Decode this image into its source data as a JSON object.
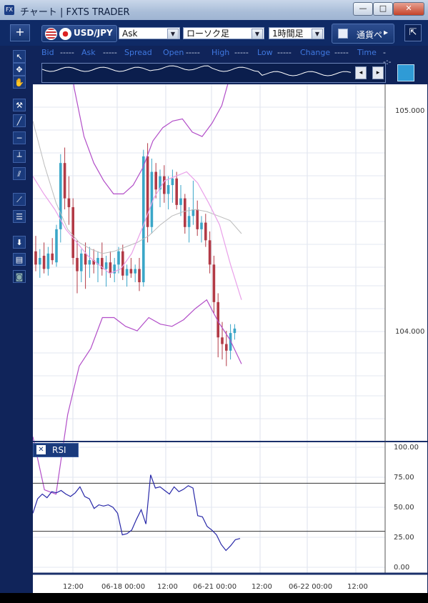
{
  "window": {
    "title": "チャート | FXTS TRADER",
    "app_icon": "FX",
    "controls": {
      "minimize": "—",
      "maximize": "□",
      "close": "✕"
    }
  },
  "toolbar": {
    "add": "+",
    "pair": "USD/JPY",
    "price_type": "Ask",
    "chart_type": "ローソク足",
    "timeframe": "1時間足",
    "currency_toggle": "通貨ペ",
    "expand_arrow": "▸",
    "corner_button": "⇱"
  },
  "info": {
    "fields": [
      "Bid",
      "Ask",
      "Spread",
      "Open",
      "High",
      "Low",
      "Change",
      "Time"
    ],
    "placeholder": "-----",
    "time_placeholder": "--:--"
  },
  "chart_data": [
    {
      "type": "candlestick",
      "title": "",
      "y_ticks": [
        "105.000",
        "104.000"
      ],
      "x_ticks": [
        "12:00",
        "06-18 00:00",
        "12:00",
        "06-21 00:00",
        "12:00",
        "06-22 00:00",
        "12:00"
      ],
      "overlays": [
        "moving average",
        "bollinger bands (inner)",
        "bollinger bands (outer)"
      ],
      "grid": true,
      "candles_visible": 70
    },
    {
      "type": "line",
      "title": "RSI",
      "ylim": [
        0,
        100
      ],
      "y_ticks": [
        "100.00",
        "75.00",
        "50.00",
        "25.00",
        "0.00"
      ],
      "reference_lines": [
        70,
        30
      ],
      "values": [
        45,
        57,
        61,
        58,
        63,
        62,
        64,
        61,
        59,
        62,
        67,
        59,
        57,
        49,
        52,
        51,
        52,
        50,
        45,
        27,
        28,
        31,
        40,
        48,
        36,
        77,
        66,
        67,
        64,
        61,
        67,
        63,
        65,
        68,
        66,
        43,
        42,
        34,
        31,
        27,
        19,
        14,
        18,
        23,
        24
      ]
    }
  ],
  "colors": {
    "up_candle": "#3aa6c8",
    "down_candle": "#b23a46",
    "ma": "#bbbbbb",
    "band_inner": "#e9a0e9",
    "band_outer": "#b24ec8",
    "rsi_line": "#2828a8",
    "chrome": "#10245a"
  }
}
